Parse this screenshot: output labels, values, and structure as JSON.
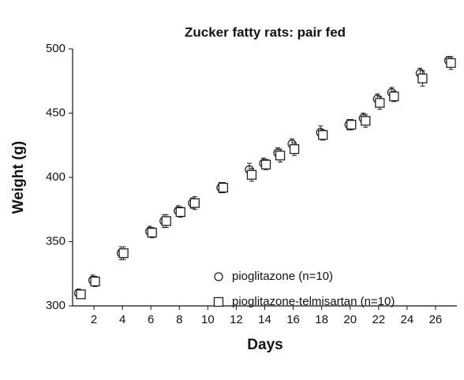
{
  "chart_data": {
    "type": "scatter",
    "title": "Zucker fatty rats: pair fed",
    "x_label": "Days",
    "y_label": "Weight (g)",
    "xlim": [
      0.5,
      27.5
    ],
    "xticks": [
      2,
      4,
      6,
      8,
      10,
      12,
      14,
      16,
      18,
      20,
      22,
      24,
      26
    ],
    "ylim": [
      300,
      500
    ],
    "yticks": [
      300,
      350,
      400,
      450,
      500
    ],
    "grid": false,
    "legend": "lower right",
    "series": [
      {
        "name": "pioglitazone (n=10)",
        "marker": "circle",
        "color": "#222222",
        "x": [
          1,
          2,
          4,
          6,
          7,
          8,
          9,
          11,
          13,
          14,
          15,
          16,
          18,
          20,
          21,
          22,
          23,
          25,
          27
        ],
        "values": [
          310,
          320,
          341,
          358,
          366,
          374,
          380,
          392,
          406,
          411,
          419,
          426,
          435,
          441,
          446,
          461,
          466,
          481,
          491
        ],
        "errors": [
          3,
          4,
          5,
          4,
          5,
          4,
          4,
          4,
          5,
          4,
          4,
          4,
          5,
          4,
          4,
          4,
          4,
          4,
          3
        ]
      },
      {
        "name": "pioglitazone-telmisartan (n=10)",
        "marker": "square",
        "color": "#222222",
        "x": [
          1,
          2,
          4,
          6,
          7,
          8,
          9,
          11,
          13,
          14,
          15,
          16,
          18,
          20,
          21,
          22,
          23,
          25,
          27
        ],
        "values": [
          309,
          319,
          341,
          357,
          366,
          373,
          380,
          392,
          402,
          410,
          417,
          422,
          433,
          441,
          444,
          458,
          463,
          477,
          489
        ],
        "errors": [
          3,
          4,
          5,
          4,
          5,
          4,
          5,
          4,
          5,
          4,
          5,
          5,
          4,
          4,
          5,
          5,
          4,
          6,
          5
        ]
      }
    ]
  }
}
